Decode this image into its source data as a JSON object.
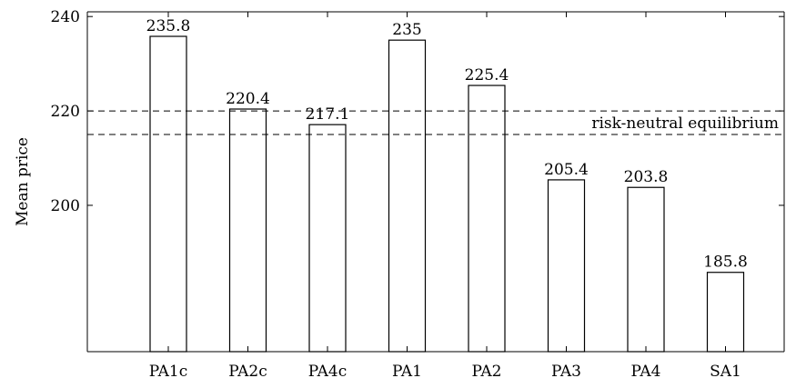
{
  "chart_data": {
    "type": "bar",
    "title": "",
    "xlabel": "",
    "ylabel": "Mean price",
    "ylim": [
      169,
      241
    ],
    "yticks": [
      200,
      220,
      240
    ],
    "grid": false,
    "categories": [
      "PA1c",
      "PA2c",
      "PA4c",
      "PA1",
      "PA2",
      "PA3",
      "PA4",
      "SA1"
    ],
    "series": [
      {
        "values": [
          235.8,
          220.4,
          217.1,
          235,
          225.4,
          205.4,
          203.8,
          185.8
        ]
      }
    ],
    "data_labels": [
      "235.8",
      "220.4",
      "217.1",
      "235",
      "225.4",
      "205.4",
      "203.8",
      "185.8"
    ],
    "reference_lines": [
      {
        "y": 220,
        "style": "dashed"
      },
      {
        "y": 215,
        "style": "dashed"
      }
    ],
    "annotations": [
      {
        "text": "risk-neutral equilibrium"
      }
    ]
  }
}
